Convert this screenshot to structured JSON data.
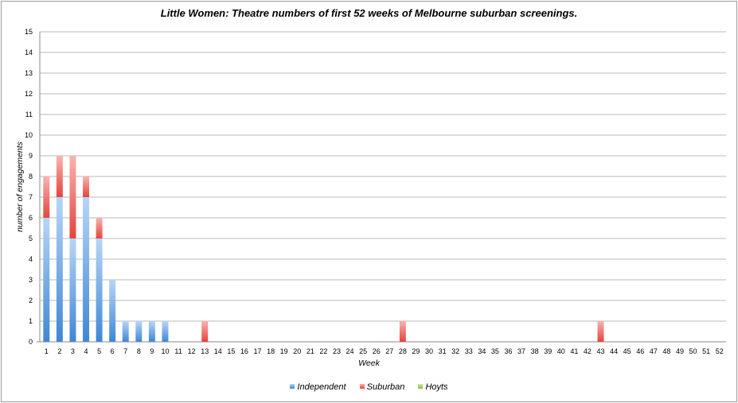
{
  "chart_data": {
    "type": "bar",
    "stacked": true,
    "title": "Little Women: Theatre numbers of first 52 weeks of Melbourne suburban screenings.",
    "xlabel": "Week",
    "ylabel": "number of engagements",
    "ylim": [
      0,
      15
    ],
    "yticks": [
      "0",
      "1",
      "2",
      "3",
      "4",
      "5",
      "6",
      "7",
      "8",
      "9",
      "10",
      "11",
      "12",
      "13",
      "14",
      "15"
    ],
    "categories": [
      "1",
      "2",
      "3",
      "4",
      "5",
      "6",
      "7",
      "8",
      "9",
      "10",
      "11",
      "12",
      "13",
      "14",
      "15",
      "16",
      "17",
      "18",
      "19",
      "20",
      "21",
      "22",
      "23",
      "24",
      "25",
      "26",
      "27",
      "28",
      "29",
      "30",
      "31",
      "32",
      "33",
      "34",
      "35",
      "36",
      "37",
      "38",
      "39",
      "40",
      "41",
      "42",
      "43",
      "44",
      "45",
      "46",
      "47",
      "48",
      "49",
      "50",
      "51",
      "52"
    ],
    "grid": true,
    "legend_position": "bottom",
    "series": [
      {
        "name": "Independent",
        "color": "#4a90d9",
        "values": [
          6,
          7,
          5,
          7,
          5,
          3,
          1,
          1,
          1,
          1,
          0,
          0,
          0,
          0,
          0,
          0,
          0,
          0,
          0,
          0,
          0,
          0,
          0,
          0,
          0,
          0,
          0,
          0,
          0,
          0,
          0,
          0,
          0,
          0,
          0,
          0,
          0,
          0,
          0,
          0,
          0,
          0,
          0,
          0,
          0,
          0,
          0,
          0,
          0,
          0,
          0,
          0
        ]
      },
      {
        "name": "Suburban",
        "color": "#e8483f",
        "values": [
          2,
          2,
          4,
          1,
          1,
          0,
          0,
          0,
          0,
          0,
          0,
          0,
          1,
          0,
          0,
          0,
          0,
          0,
          0,
          0,
          0,
          0,
          0,
          0,
          0,
          0,
          0,
          1,
          0,
          0,
          0,
          0,
          0,
          0,
          0,
          0,
          0,
          0,
          0,
          0,
          0,
          0,
          1,
          0,
          0,
          0,
          0,
          0,
          0,
          0,
          0,
          0
        ]
      },
      {
        "name": "Hoyts",
        "color": "#8dc63f",
        "values": [
          0,
          0,
          0,
          0,
          0,
          0,
          0,
          0,
          0,
          0,
          0,
          0,
          0,
          0,
          0,
          0,
          0,
          0,
          0,
          0,
          0,
          0,
          0,
          0,
          0,
          0,
          0,
          0,
          0,
          0,
          0,
          0,
          0,
          0,
          0,
          0,
          0,
          0,
          0,
          0,
          0,
          0,
          0,
          0,
          0,
          0,
          0,
          0,
          0,
          0,
          0,
          0
        ]
      }
    ]
  }
}
